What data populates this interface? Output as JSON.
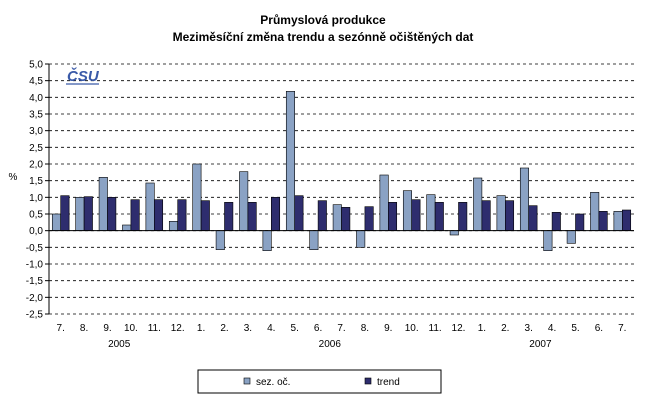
{
  "chart_data": {
    "type": "bar",
    "title": "Průmyslová produkce",
    "subtitle": "Meziměsíční změna trendu a sezónně očištěných dat",
    "logo_text": "ČSU",
    "xlabel": "",
    "ylabel": "%",
    "ylim": [
      -2.5,
      5.0
    ],
    "ytick_step": 0.5,
    "grid": true,
    "legend_position": "bottom",
    "categories": [
      "7.",
      "8.",
      "9.",
      "10.",
      "11.",
      "12.",
      "1.",
      "2.",
      "3.",
      "4.",
      "5.",
      "6.",
      "7.",
      "8.",
      "9.",
      "10.",
      "11.",
      "12.",
      "1.",
      "2.",
      "3.",
      "4.",
      "5.",
      "6.",
      "7."
    ],
    "year_labels": [
      {
        "label": "2005",
        "category_index": 2.5
      },
      {
        "label": "2006",
        "category_index": 11.5
      },
      {
        "label": "2007",
        "category_index": 20.5
      }
    ],
    "series": [
      {
        "name": "sez. oč.",
        "color": "#8aa2c4",
        "values": [
          0.5,
          1.0,
          1.6,
          0.17,
          1.43,
          0.28,
          2.0,
          -0.57,
          1.77,
          -0.6,
          4.18,
          -0.57,
          0.78,
          -0.5,
          1.67,
          1.2,
          1.08,
          -0.13,
          1.58,
          1.05,
          1.88,
          -0.6,
          -0.38,
          1.15,
          0.58
        ]
      },
      {
        "name": "trend",
        "color": "#2e2d6e",
        "values": [
          1.05,
          1.02,
          1.0,
          0.93,
          0.93,
          0.93,
          0.9,
          0.85,
          0.85,
          1.0,
          1.05,
          0.9,
          0.7,
          0.72,
          0.85,
          0.93,
          0.85,
          0.85,
          0.9,
          0.9,
          0.75,
          0.55,
          0.5,
          0.58,
          0.62
        ]
      }
    ]
  }
}
